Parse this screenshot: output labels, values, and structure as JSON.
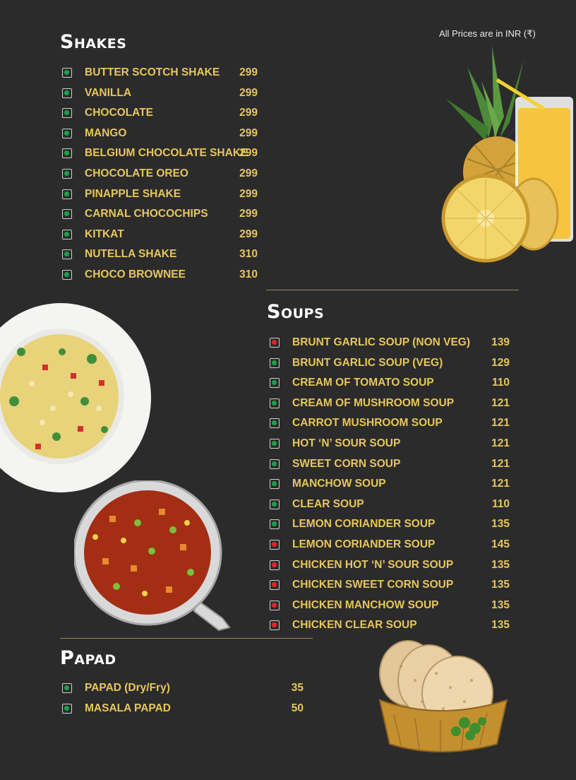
{
  "price_note": "All Prices are in INR (₹)",
  "colors": {
    "veg": "#17a34a",
    "nonveg": "#e8232a",
    "item_text": "#e7c65c",
    "background": "#2b2b2b"
  },
  "shakes": {
    "title": "Shakes",
    "items": [
      {
        "name": "BUTTER SCOTCH SHAKE",
        "price": "299",
        "type": "veg"
      },
      {
        "name": "VANILLA",
        "price": "299",
        "type": "veg"
      },
      {
        "name": "CHOCOLATE",
        "price": "299",
        "type": "veg"
      },
      {
        "name": "MANGO",
        "price": "299",
        "type": "veg"
      },
      {
        "name": "BELGIUM CHOCOLATE SHAKE",
        "price": "299",
        "type": "veg"
      },
      {
        "name": "CHOCOLATE OREO",
        "price": "299",
        "type": "veg"
      },
      {
        "name": "PINAPPLE SHAKE",
        "price": "299",
        "type": "veg"
      },
      {
        "name": "CARNAL CHOCOCHIPS",
        "price": "299",
        "type": "veg"
      },
      {
        "name": "KITKAT",
        "price": "299",
        "type": "veg"
      },
      {
        "name": "NUTELLA SHAKE",
        "price": "310",
        "type": "veg"
      },
      {
        "name": "CHOCO BROWNEE",
        "price": "310",
        "type": "veg"
      }
    ]
  },
  "soups": {
    "title": "Soups",
    "items": [
      {
        "name": "BRUNT GARLIC SOUP (NON VEG)",
        "price": "139",
        "type": "nonveg"
      },
      {
        "name": "BRUNT GARLIC SOUP (VEG)",
        "price": "129",
        "type": "veg"
      },
      {
        "name": "CREAM OF TOMATO SOUP",
        "price": "110",
        "type": "veg"
      },
      {
        "name": "CREAM OF MUSHROOM SOUP",
        "price": "121",
        "type": "veg"
      },
      {
        "name": "CARROT MUSHROOM SOUP",
        "price": "121",
        "type": "veg"
      },
      {
        "name": "HOT ‘N’ SOUR SOUP",
        "price": "121",
        "type": "veg"
      },
      {
        "name": "SWEET CORN SOUP",
        "price": "121",
        "type": "veg"
      },
      {
        "name": "MANCHOW SOUP",
        "price": "121",
        "type": "veg"
      },
      {
        "name": "CLEAR SOUP",
        "price": "110",
        "type": "veg"
      },
      {
        "name": "LEMON CORIANDER SOUP",
        "price": "135",
        "type": "veg"
      },
      {
        "name": "LEMON CORIANDER SOUP",
        "price": "145",
        "type": "nonveg"
      },
      {
        "name": "CHICKEN HOT ‘N’ SOUR SOUP",
        "price": "135",
        "type": "nonveg"
      },
      {
        "name": "CHICKEN SWEET CORN SOUP",
        "price": "135",
        "type": "nonveg"
      },
      {
        "name": "CHICKEN MANCHOW SOUP",
        "price": "135",
        "type": "nonveg"
      },
      {
        "name": "CHICKEN CLEAR SOUP",
        "price": "135",
        "type": "nonveg"
      }
    ]
  },
  "papad": {
    "title": "Papad",
    "items": [
      {
        "name": "PAPAD (Dry/Fry)",
        "price": "35",
        "type": "veg"
      },
      {
        "name": "MASALA PAPAD",
        "price": "50",
        "type": "veg"
      }
    ]
  }
}
